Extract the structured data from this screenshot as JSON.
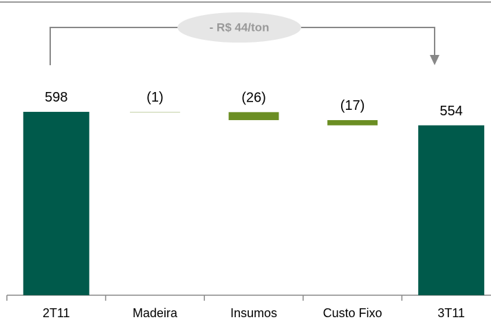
{
  "chart_data": {
    "type": "waterfall",
    "annotation": "- R$ 44/ton",
    "categories": [
      "2T11",
      "Madeira",
      "Insumos",
      "Custo Fixo",
      "3T11"
    ],
    "values": [
      598,
      -1,
      -26,
      -17,
      554
    ],
    "value_labels": [
      "598",
      "(1)",
      "(26)",
      "(17)",
      "554"
    ],
    "ylim": [
      0,
      600
    ],
    "colors": {
      "total": "#005a4b",
      "delta": "#6b8e23"
    }
  }
}
